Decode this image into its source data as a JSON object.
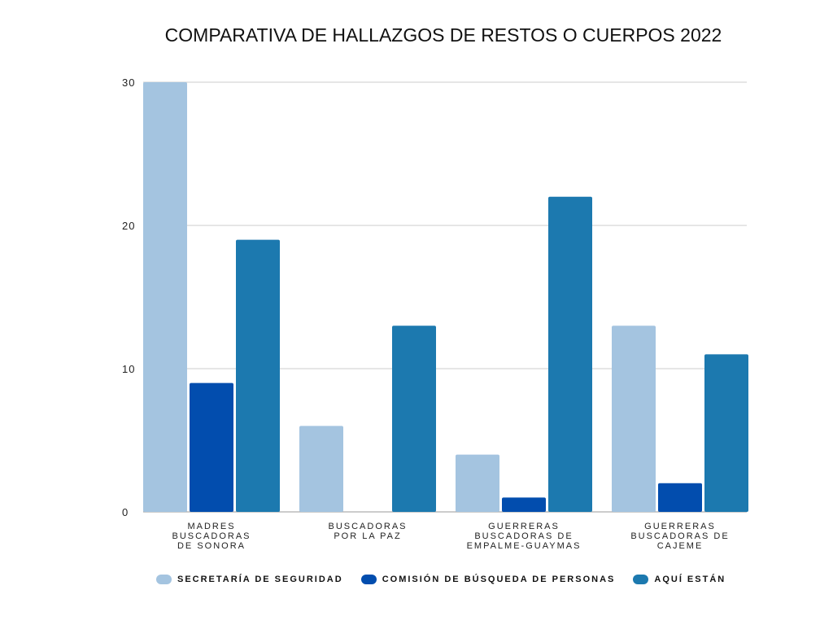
{
  "chart_data": {
    "type": "bar",
    "title": "COMPARATIVA DE HALLAZGOS DE RESTOS O CUERPOS 2022",
    "categories": [
      [
        "MADRES",
        "BUSCADORAS",
        "DE SONORA"
      ],
      [
        "BUSCADORAS",
        "POR LA PAZ"
      ],
      [
        "GUERRERAS",
        "BUSCADORAS DE",
        "EMPALME-GUAYMAS"
      ],
      [
        "GUERRERAS",
        "BUSCADORAS DE",
        "CAJEME"
      ]
    ],
    "series": [
      {
        "name": "SECRETARÍA DE SEGURIDAD",
        "color": "#a4c4e0",
        "values": [
          30,
          6,
          4,
          13
        ]
      },
      {
        "name": "COMISIÓN DE BÚSQUEDA DE PERSONAS",
        "color": "#024dae",
        "values": [
          9,
          0,
          1,
          2
        ]
      },
      {
        "name": "AQUÍ ESTÁN",
        "color": "#1c79af",
        "values": [
          19,
          13,
          22,
          11
        ]
      }
    ],
    "ylim": [
      0,
      30
    ],
    "yticks": [
      0,
      10,
      20,
      30
    ],
    "grid": true,
    "legend": "bottom",
    "xlabel": "",
    "ylabel": ""
  }
}
